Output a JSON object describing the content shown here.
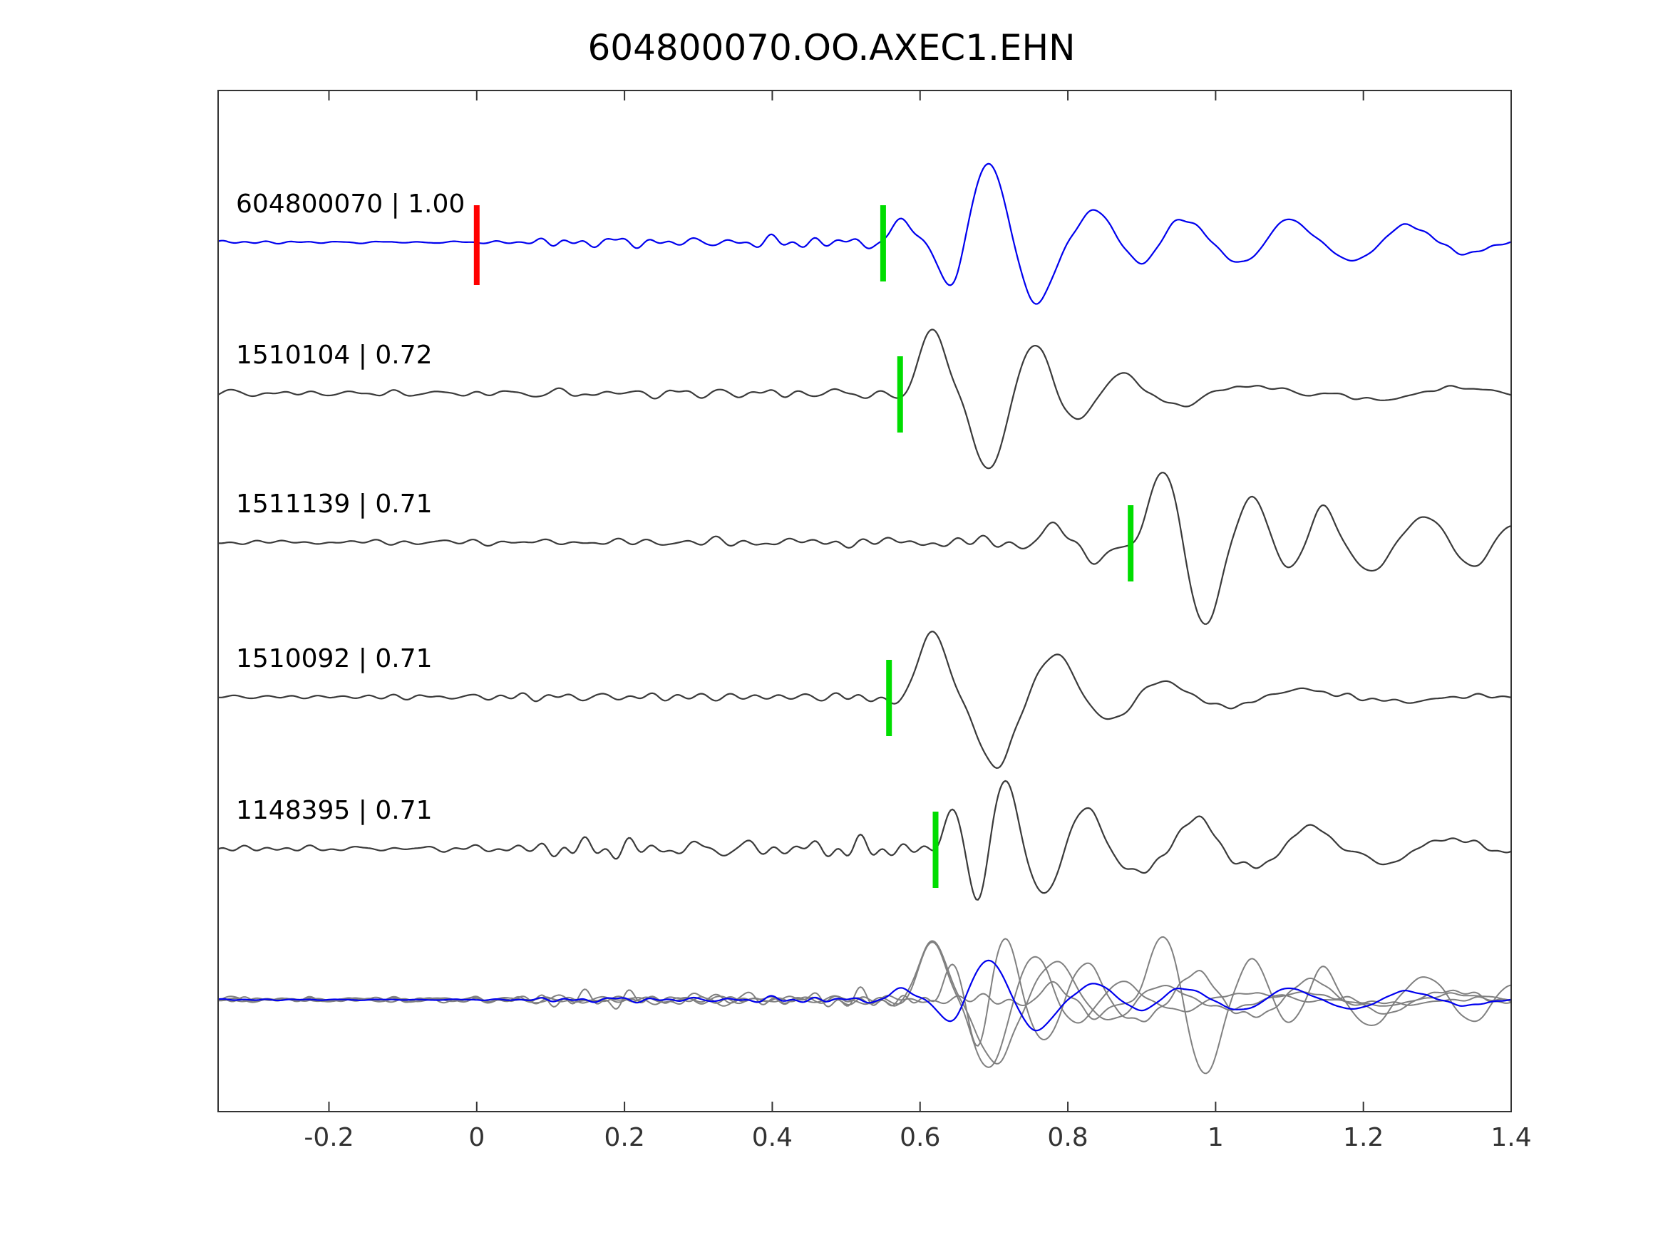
{
  "chart_data": {
    "type": "line",
    "title": "604800070.OO.AXEC1.EHN",
    "xlabel": "",
    "ylabel": "",
    "x_range": [
      -0.35,
      1.4
    ],
    "x_ticks": [
      -0.2,
      0,
      0.2,
      0.4,
      0.6,
      0.8,
      1,
      1.2,
      1.4
    ],
    "x_tick_labels": [
      "-0.2",
      "0",
      "0.2",
      "0.4",
      "0.6",
      "0.8",
      "1",
      "1.2",
      "1.4"
    ],
    "grid": false,
    "legend": "none",
    "colors": {
      "reference_trace": "#0000ee",
      "match_trace": "#3a3a3a",
      "overlay_gray": "#808080",
      "pick_marker": "#00dd00",
      "reference_marker": "#ff0000",
      "axis": "#333333"
    },
    "reference_marker": {
      "x": 0.0,
      "trace": "604800070",
      "color": "#ff0000"
    },
    "traces": [
      {
        "id": "604800070",
        "label": "604800070 | 1.00",
        "cc": "1.00",
        "color": "#0000ee",
        "pick": 0.55,
        "pick_color": "#00dd00",
        "seed": 101,
        "amp_scale": 1.0,
        "noise_env": [
          [
            -0.35,
            0.012
          ],
          [
            0.06,
            0.012
          ],
          [
            0.11,
            0.05
          ],
          [
            0.34,
            0.06
          ],
          [
            0.5,
            0.055
          ],
          [
            0.57,
            0.02
          ],
          [
            1.4,
            0.015
          ]
        ],
        "packets": [
          {
            "t": 0.575,
            "a": 0.3,
            "f": 9,
            "w": 0.03
          },
          {
            "t": 0.64,
            "a": -0.45,
            "f": 8,
            "w": 0.03
          },
          {
            "t": 0.692,
            "a": 1.0,
            "f": 6.5,
            "w": 0.042
          },
          {
            "t": 0.76,
            "a": -0.72,
            "f": 6.5,
            "w": 0.04
          },
          {
            "t": 0.838,
            "a": 0.4,
            "f": 7,
            "w": 0.045
          },
          {
            "t": 0.905,
            "a": -0.18,
            "f": 7,
            "w": 0.04
          },
          {
            "t": 0.955,
            "a": 0.28,
            "f": 6,
            "w": 0.05
          },
          {
            "t": 1.035,
            "a": -0.2,
            "f": 6,
            "w": 0.05
          },
          {
            "t": 1.1,
            "a": 0.26,
            "f": 6,
            "w": 0.055
          },
          {
            "t": 1.19,
            "a": -0.18,
            "f": 5.5,
            "w": 0.055
          },
          {
            "t": 1.26,
            "a": 0.2,
            "f": 5.5,
            "w": 0.06
          },
          {
            "t": 1.345,
            "a": -0.12,
            "f": 5,
            "w": 0.05
          }
        ]
      },
      {
        "id": "1510104",
        "label": "1510104 | 0.72",
        "cc": "0.72",
        "color": "#3a3a3a",
        "pick": 0.573,
        "pick_color": "#00dd00",
        "seed": 202,
        "amp_scale": 0.95,
        "noise_env": [
          [
            -0.35,
            0.03
          ],
          [
            0.1,
            0.035
          ],
          [
            0.25,
            0.05
          ],
          [
            0.45,
            0.06
          ],
          [
            0.55,
            0.03
          ],
          [
            1.4,
            0.02
          ]
        ],
        "packets": [
          {
            "t": 0.615,
            "a": 0.85,
            "f": 7,
            "w": 0.035
          },
          {
            "t": 0.693,
            "a": -1.0,
            "f": 6,
            "w": 0.045
          },
          {
            "t": 0.755,
            "a": 0.55,
            "f": 6.5,
            "w": 0.04
          },
          {
            "t": 0.815,
            "a": -0.28,
            "f": 6.5,
            "w": 0.045
          },
          {
            "t": 0.875,
            "a": 0.22,
            "f": 6,
            "w": 0.05
          },
          {
            "t": 0.95,
            "a": -0.12,
            "f": 5,
            "w": 0.06
          },
          {
            "t": 1.05,
            "a": 0.1,
            "f": 4.5,
            "w": 0.08
          },
          {
            "t": 1.22,
            "a": -0.08,
            "f": 4,
            "w": 0.09
          },
          {
            "t": 1.33,
            "a": 0.07,
            "f": 4,
            "w": 0.08
          }
        ]
      },
      {
        "id": "1511139",
        "label": "1511139 | 0.71",
        "cc": "0.71",
        "color": "#3a3a3a",
        "pick": 0.885,
        "pick_color": "#00dd00",
        "seed": 303,
        "amp_scale": 0.95,
        "noise_env": [
          [
            -0.35,
            0.03
          ],
          [
            0.25,
            0.04
          ],
          [
            0.35,
            0.06
          ],
          [
            0.55,
            0.08
          ],
          [
            0.75,
            0.09
          ],
          [
            0.86,
            0.04
          ],
          [
            1.4,
            0.02
          ]
        ],
        "packets": [
          {
            "t": 0.78,
            "a": 0.18,
            "f": 8,
            "w": 0.04
          },
          {
            "t": 0.835,
            "a": -0.22,
            "f": 8,
            "w": 0.04
          },
          {
            "t": 0.93,
            "a": 0.88,
            "f": 6.5,
            "w": 0.042
          },
          {
            "t": 0.985,
            "a": -1.0,
            "f": 6,
            "w": 0.045
          },
          {
            "t": 1.05,
            "a": 0.5,
            "f": 7,
            "w": 0.04
          },
          {
            "t": 1.1,
            "a": -0.25,
            "f": 8,
            "w": 0.03
          },
          {
            "t": 1.145,
            "a": 0.42,
            "f": 8,
            "w": 0.035
          },
          {
            "t": 1.21,
            "a": -0.35,
            "f": 6.5,
            "w": 0.045
          },
          {
            "t": 1.285,
            "a": 0.3,
            "f": 6,
            "w": 0.05
          },
          {
            "t": 1.35,
            "a": -0.28,
            "f": 6,
            "w": 0.045
          },
          {
            "t": 1.4,
            "a": 0.2,
            "f": 6,
            "w": 0.04
          }
        ]
      },
      {
        "id": "1510092",
        "label": "1510092 | 0.71",
        "cc": "0.71",
        "color": "#3a3a3a",
        "pick": 0.558,
        "pick_color": "#00dd00",
        "seed": 404,
        "amp_scale": 0.9,
        "noise_env": [
          [
            -0.35,
            0.025
          ],
          [
            0.15,
            0.04
          ],
          [
            0.3,
            0.05
          ],
          [
            0.5,
            0.055
          ],
          [
            0.56,
            0.025
          ],
          [
            1.4,
            0.02
          ]
        ],
        "packets": [
          {
            "t": 0.615,
            "a": 0.88,
            "f": 6.5,
            "w": 0.04
          },
          {
            "t": 0.702,
            "a": -1.0,
            "f": 5.5,
            "w": 0.052
          },
          {
            "t": 0.785,
            "a": 0.52,
            "f": 6,
            "w": 0.045
          },
          {
            "t": 0.86,
            "a": -0.28,
            "f": 6,
            "w": 0.05
          },
          {
            "t": 0.93,
            "a": 0.18,
            "f": 5.5,
            "w": 0.055
          },
          {
            "t": 1.02,
            "a": -0.12,
            "f": 5,
            "w": 0.06
          },
          {
            "t": 1.12,
            "a": 0.1,
            "f": 4.5,
            "w": 0.07
          },
          {
            "t": 1.26,
            "a": -0.07,
            "f": 4,
            "w": 0.08
          }
        ]
      },
      {
        "id": "1148395",
        "label": "1148395 | 0.71",
        "cc": "0.71",
        "color": "#3a3a3a",
        "pick": 0.621,
        "pick_color": "#00dd00",
        "seed": 505,
        "amp_scale": 0.9,
        "noise_env": [
          [
            -0.35,
            0.035
          ],
          [
            0.08,
            0.05
          ],
          [
            0.12,
            0.13
          ],
          [
            0.3,
            0.12
          ],
          [
            0.45,
            0.1
          ],
          [
            0.55,
            0.12
          ],
          [
            0.62,
            0.05
          ],
          [
            1.4,
            0.03
          ]
        ],
        "packets": [
          {
            "t": 0.648,
            "a": 0.62,
            "f": 9,
            "w": 0.028
          },
          {
            "t": 0.678,
            "a": -0.8,
            "f": 8,
            "w": 0.03
          },
          {
            "t": 0.712,
            "a": 0.95,
            "f": 7,
            "w": 0.034
          },
          {
            "t": 0.768,
            "a": -0.55,
            "f": 7,
            "w": 0.038
          },
          {
            "t": 0.825,
            "a": 0.48,
            "f": 6.5,
            "w": 0.045
          },
          {
            "t": 0.895,
            "a": -0.3,
            "f": 6,
            "w": 0.05
          },
          {
            "t": 0.975,
            "a": 0.38,
            "f": 6,
            "w": 0.05
          },
          {
            "t": 1.05,
            "a": -0.22,
            "f": 5.5,
            "w": 0.055
          },
          {
            "t": 1.13,
            "a": 0.28,
            "f": 5.5,
            "w": 0.055
          },
          {
            "t": 1.23,
            "a": -0.18,
            "f": 5,
            "w": 0.06
          },
          {
            "t": 1.32,
            "a": 0.14,
            "f": 5,
            "w": 0.06
          }
        ]
      }
    ],
    "overlay": {
      "description": "all traces superimposed on bottom row",
      "gray_color": "#808080",
      "gray_scale": 0.9,
      "reference_color": "#0000ee",
      "reference_scale": 0.5
    }
  }
}
